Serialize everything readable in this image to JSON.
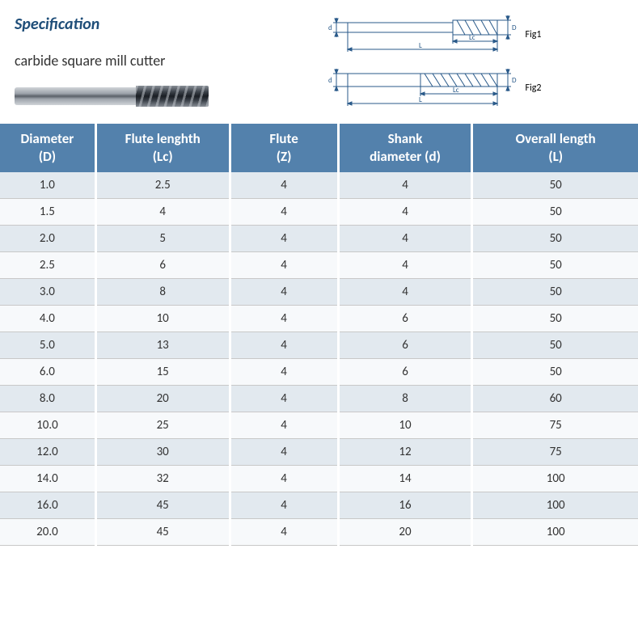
{
  "header": {
    "title": "Specification",
    "product_name": "carbide square mill cutter",
    "fig1_label": "Fig1",
    "fig2_label": "Fig2",
    "diagram": {
      "stroke_color": "#2a5a8a",
      "label_d": "d",
      "label_D": "D",
      "label_Lc": "Lc",
      "label_L": "L"
    }
  },
  "table": {
    "type": "table",
    "header_bg": "#5381ac",
    "header_fg": "#ffffff",
    "row_alt_bg": "#e2e9ef",
    "row_bg": "#f7f9fb",
    "border_color": "#c8c8c8",
    "header_fontsize": 17,
    "cell_fontsize": 15,
    "columns": [
      {
        "line1": "Diameter",
        "line2": "(D)",
        "width_pct": 15
      },
      {
        "line1": "Flute lenghth",
        "line2": "(Lc)",
        "width_pct": 21
      },
      {
        "line1": "Flute",
        "line2": "(Z)",
        "width_pct": 17
      },
      {
        "line1": "Shank",
        "line2": "diameter (d)",
        "width_pct": 21
      },
      {
        "line1": "Overall length",
        "line2": "(L)",
        "width_pct": 26
      }
    ],
    "rows": [
      [
        "1.0",
        "2.5",
        "4",
        "4",
        "50"
      ],
      [
        "1.5",
        "4",
        "4",
        "4",
        "50"
      ],
      [
        "2.0",
        "5",
        "4",
        "4",
        "50"
      ],
      [
        "2.5",
        "6",
        "4",
        "4",
        "50"
      ],
      [
        "3.0",
        "8",
        "4",
        "4",
        "50"
      ],
      [
        "4.0",
        "10",
        "4",
        "6",
        "50"
      ],
      [
        "5.0",
        "13",
        "4",
        "6",
        "50"
      ],
      [
        "6.0",
        "15",
        "4",
        "6",
        "50"
      ],
      [
        "8.0",
        "20",
        "4",
        "8",
        "60"
      ],
      [
        "10.0",
        "25",
        "4",
        "10",
        "75"
      ],
      [
        "12.0",
        "30",
        "4",
        "12",
        "75"
      ],
      [
        "14.0",
        "32",
        "4",
        "14",
        "100"
      ],
      [
        "16.0",
        "45",
        "4",
        "16",
        "100"
      ],
      [
        "20.0",
        "45",
        "4",
        "20",
        "100"
      ]
    ]
  }
}
